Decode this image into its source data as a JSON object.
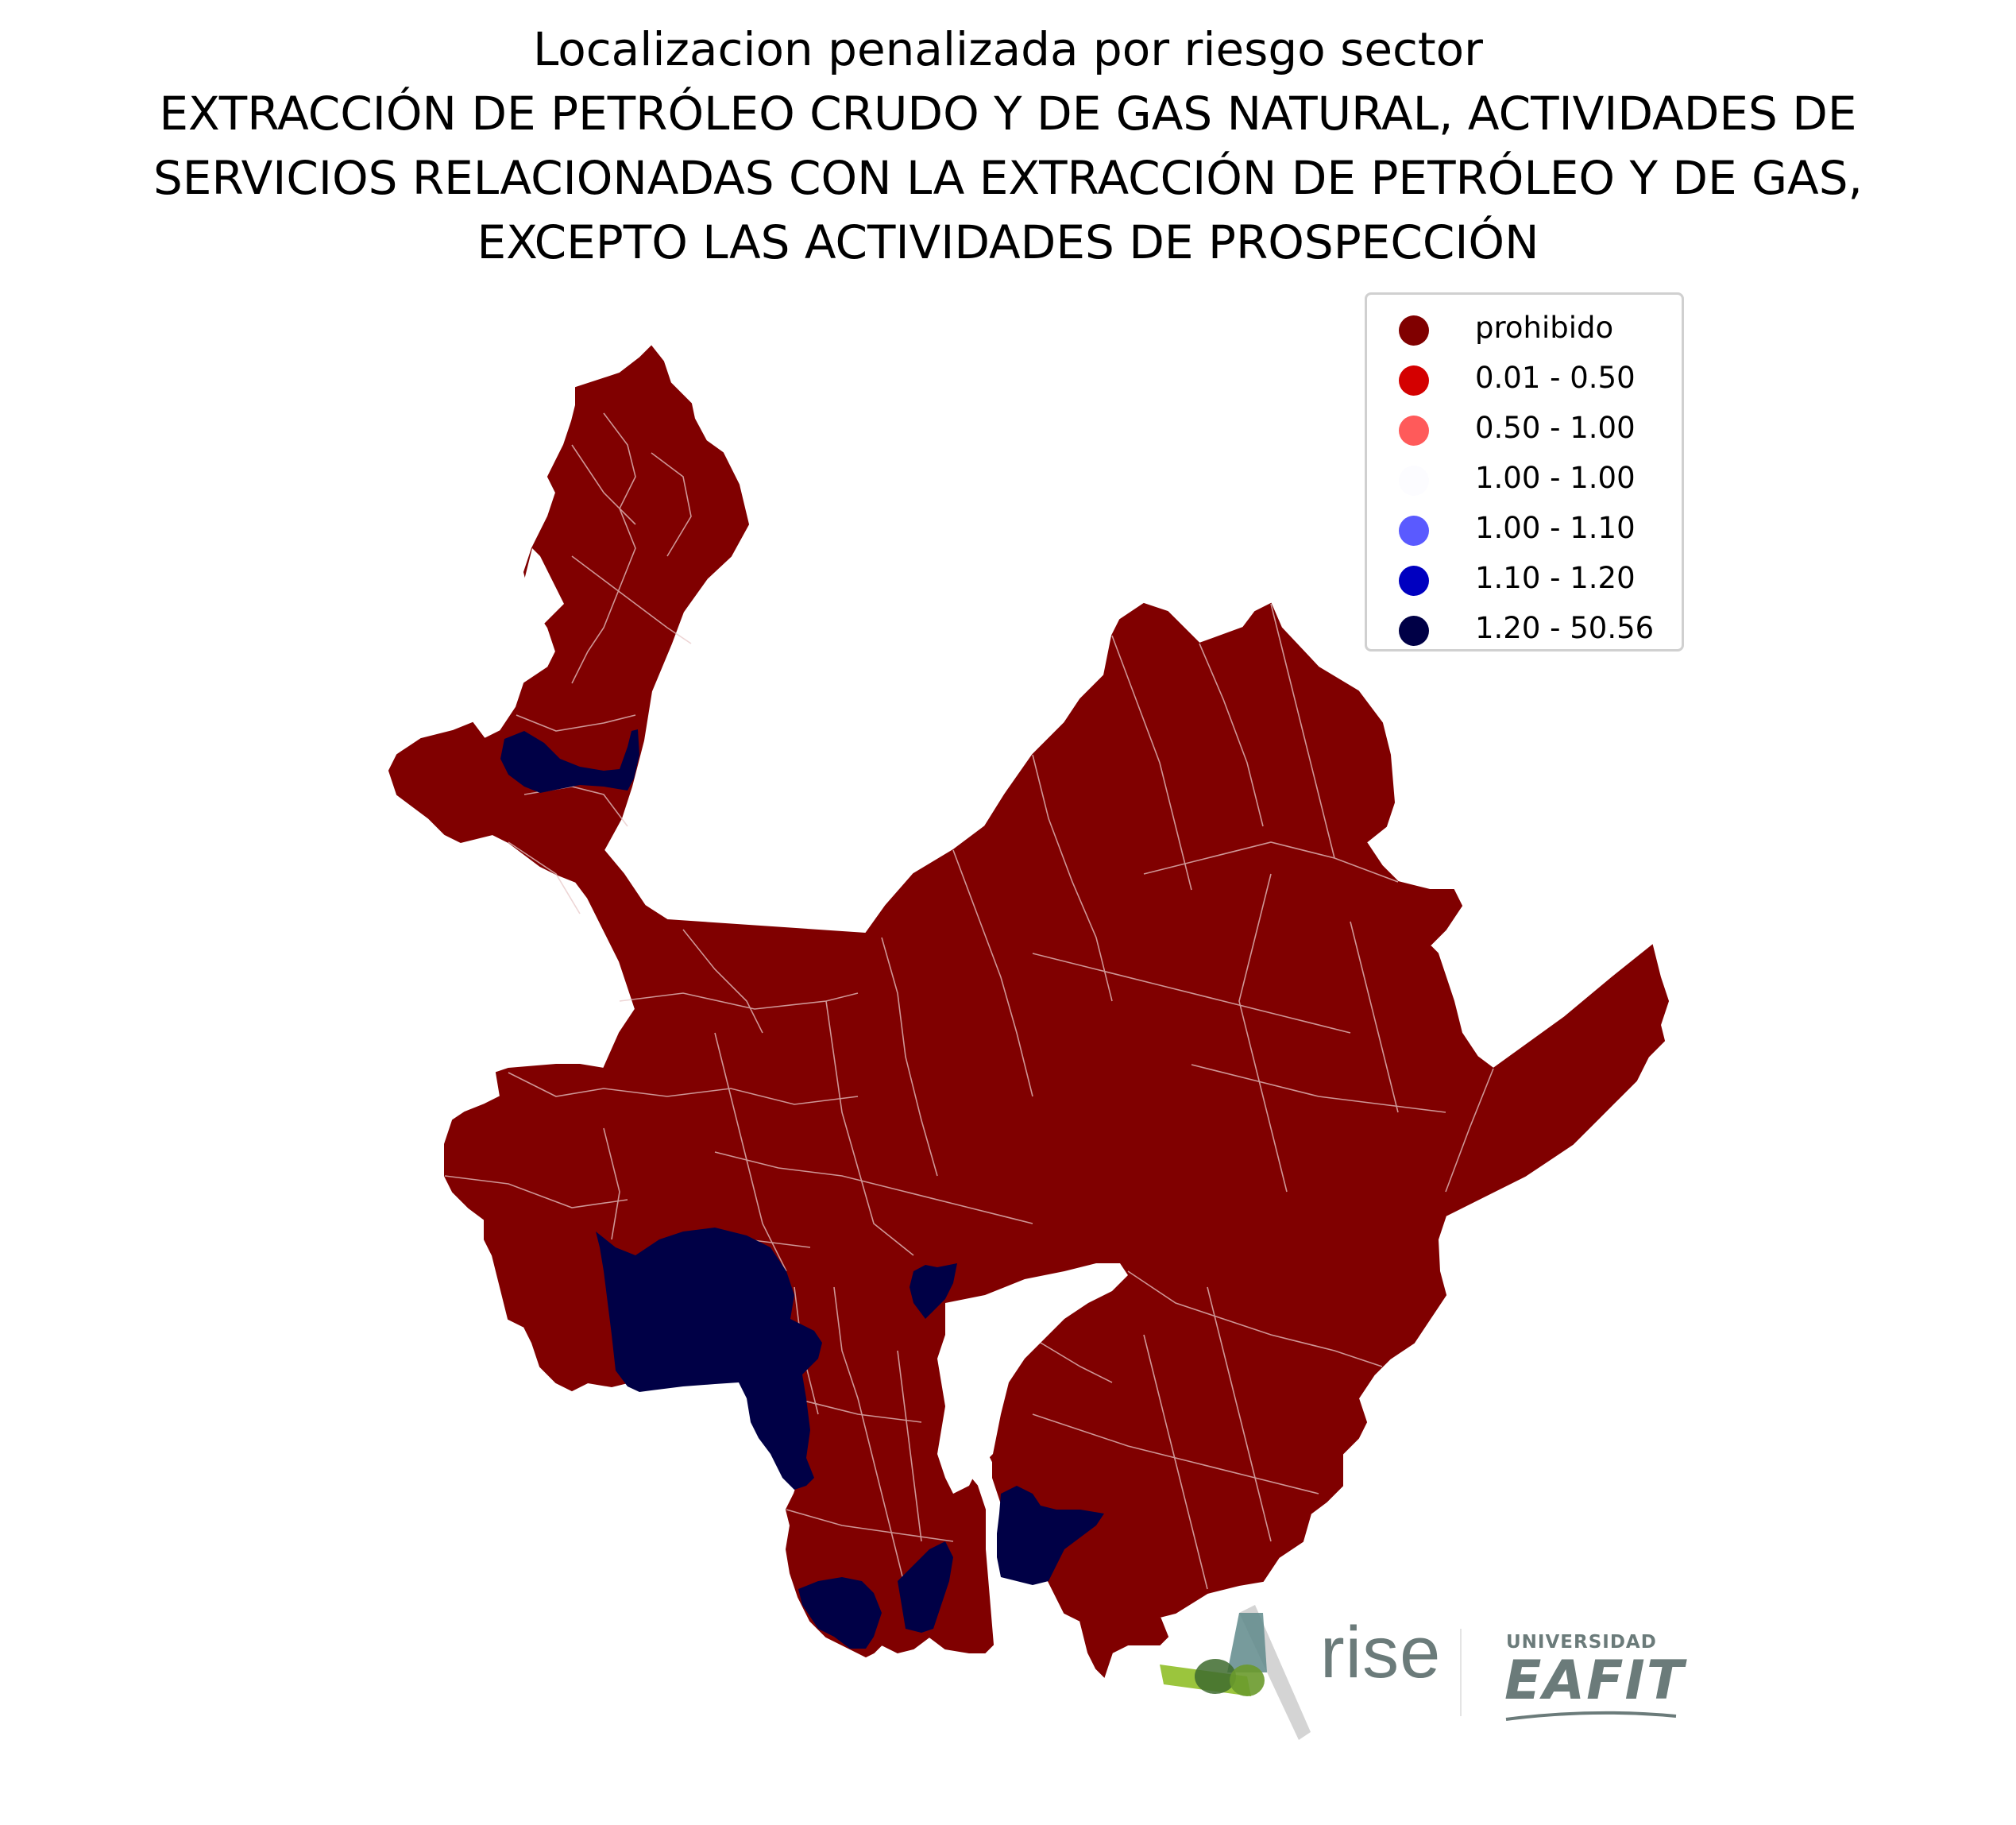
{
  "title": {
    "line1": "Localizacion penalizada por riesgo sector",
    "line2": "EXTRACCIÓN DE PETRÓLEO CRUDO Y DE GAS NATURAL, ACTIVIDADES DE",
    "line3": "SERVICIOS RELACIONADAS CON LA EXTRACCIÓN DE PETRÓLEO Y DE GAS,",
    "line4": "EXCEPTO LAS ACTIVIDADES DE PROSPECCIÓN"
  },
  "legend": {
    "items": [
      {
        "label": "prohibido",
        "color": "#800000"
      },
      {
        "label": "0.01 - 0.50",
        "color": "#d40000"
      },
      {
        "label": "0.50 - 1.00",
        "color": "#ff5a5a"
      },
      {
        "label": "1.00 - 1.00",
        "color": "#fcfcff"
      },
      {
        "label": "1.00 - 1.10",
        "color": "#5a5aff"
      },
      {
        "label": "1.10 - 1.20",
        "color": "#0000c0"
      },
      {
        "label": "1.20 - 50.56",
        "color": "#000046"
      }
    ]
  },
  "map": {
    "highlighted_class": "1.20 - 50.56",
    "base_class": "prohibido"
  },
  "logos": {
    "rise": "rise",
    "university_top": "UNIVERSIDAD",
    "university_name": "EAFIT"
  }
}
